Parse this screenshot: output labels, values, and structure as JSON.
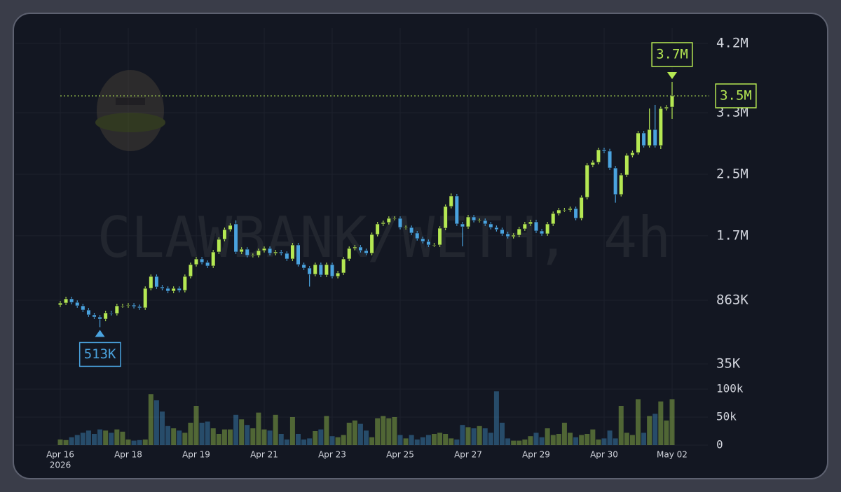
{
  "chart_data": {
    "type": "candlestick",
    "watermark": "CLAWBANK/WETH, 4h",
    "categories": [
      "Apr 16",
      null,
      null,
      null,
      null,
      null,
      null,
      null,
      null,
      null,
      null,
      null,
      "Apr 18",
      null,
      null,
      null,
      null,
      null,
      null,
      null,
      null,
      null,
      null,
      null,
      "Apr 19",
      null,
      null,
      null,
      null,
      null,
      null,
      null,
      null,
      null,
      null,
      null,
      "Apr 21",
      null,
      null,
      null,
      null,
      null,
      null,
      null,
      null,
      null,
      null,
      null,
      "Apr 23",
      null,
      null,
      null,
      null,
      null,
      null,
      null,
      null,
      null,
      null,
      null,
      "Apr 25",
      null,
      null,
      null,
      null,
      null,
      null,
      null,
      null,
      null,
      null,
      null,
      "Apr 27",
      null,
      null,
      null,
      null,
      null,
      null,
      null,
      null,
      null,
      null,
      null,
      "Apr 29",
      null,
      null,
      null,
      null,
      null,
      null,
      null,
      null,
      null,
      null,
      null,
      "Apr 30",
      null,
      null,
      null,
      null,
      null,
      null,
      null,
      null,
      null,
      null,
      null,
      "May 02"
    ],
    "year_label": "2026",
    "open": [
      800000,
      826000,
      881000,
      835000,
      790000,
      735000,
      672000,
      644000,
      617000,
      699000,
      690000,
      790000,
      790000,
      799000,
      781000,
      763000,
      1017000,
      1172000,
      1035000,
      1017000,
      981000,
      1017000,
      990000,
      1172000,
      1326000,
      1399000,
      1354000,
      1308000,
      1490000,
      1654000,
      1781000,
      1854000,
      1490000,
      1526000,
      1445000,
      1445000,
      1508000,
      1536000,
      1472000,
      1490000,
      1472000,
      1399000,
      1581000,
      1326000,
      1281000,
      1199000,
      1326000,
      1190000,
      1326000,
      1172000,
      1217000,
      1399000,
      1536000,
      1554000,
      1508000,
      1472000,
      1717000,
      1854000,
      1872000,
      1927000,
      1927000,
      1808000,
      1808000,
      1736000,
      1663000,
      1626000,
      1581000,
      1581000,
      1799000,
      2081000,
      2218000,
      1854000,
      1817000,
      1945000,
      1899000,
      1899000,
      1854000,
      1808000,
      1781000,
      1726000,
      1690000,
      1708000,
      1790000,
      1854000,
      1881000,
      1763000,
      1726000,
      1854000,
      1990000,
      2036000,
      2036000,
      2054000,
      1927000,
      2199000,
      2618000,
      2654000,
      2818000,
      2800000,
      2581000,
      2236000,
      2490000,
      2745000,
      2781000,
      3036000,
      2872000,
      3081000,
      2872000,
      3354000,
      3372000
    ],
    "high": [
      851000,
      906000,
      906000,
      860000,
      815000,
      760000,
      697000,
      669000,
      724000,
      724000,
      815000,
      815000,
      824000,
      824000,
      806000,
      1042000,
      1197000,
      1197000,
      1060000,
      1042000,
      1042000,
      1042000,
      1197000,
      1351000,
      1424000,
      1424000,
      1379000,
      1515000,
      1679000,
      1806000,
      1861000,
      1900000,
      1551000,
      1551000,
      1470000,
      1533000,
      1561000,
      1561000,
      1515000,
      1515000,
      1497000,
      1606000,
      1606000,
      1351000,
      1306000,
      1351000,
      1351000,
      1351000,
      1351000,
      1242000,
      1424000,
      1561000,
      1579000,
      1579000,
      1533000,
      1742000,
      1879000,
      1897000,
      1952000,
      1952000,
      1952000,
      1833000,
      1833000,
      1761000,
      1688000,
      1651000,
      1606000,
      1824000,
      2106000,
      2250000,
      2243000,
      1879000,
      1970000,
      1970000,
      1924000,
      1924000,
      1879000,
      1833000,
      1806000,
      1751000,
      1733000,
      1815000,
      1879000,
      1906000,
      1906000,
      1788000,
      1879000,
      2015000,
      2061000,
      2061000,
      2079000,
      2079000,
      2224000,
      2643000,
      2679000,
      2843000,
      2843000,
      2830000,
      2606000,
      2515000,
      2770000,
      2806000,
      3061000,
      3061000,
      3354000,
      3400000,
      3379000,
      3397000,
      3700000
    ],
    "low": [
      775000,
      801000,
      810000,
      765000,
      710000,
      647000,
      619000,
      513000,
      592000,
      665000,
      665000,
      765000,
      765000,
      756000,
      738000,
      738000,
      992000,
      1010000,
      992000,
      956000,
      956000,
      965000,
      965000,
      1147000,
      1301000,
      1329000,
      1283000,
      1283000,
      1465000,
      1629000,
      1756000,
      1465000,
      1465000,
      1420000,
      1420000,
      1420000,
      1483000,
      1447000,
      1447000,
      1447000,
      1374000,
      1374000,
      1301000,
      1256000,
      1040000,
      1174000,
      1165000,
      1165000,
      1147000,
      1147000,
      1192000,
      1374000,
      1511000,
      1483000,
      1447000,
      1447000,
      1692000,
      1829000,
      1847000,
      1902000,
      1783000,
      1783000,
      1711000,
      1638000,
      1601000,
      1556000,
      1556000,
      1556000,
      1774000,
      2056000,
      1829000,
      1563000,
      1792000,
      1874000,
      1874000,
      1829000,
      1783000,
      1756000,
      1701000,
      1665000,
      1665000,
      1683000,
      1765000,
      1829000,
      1738000,
      1701000,
      1701000,
      1829000,
      1965000,
      2011000,
      2011000,
      1902000,
      1902000,
      2174000,
      2593000,
      2629000,
      2775000,
      2556000,
      2130000,
      2211000,
      2465000,
      2720000,
      2756000,
      2847000,
      2847000,
      2847000,
      2827000,
      3329000,
      3218000
    ],
    "close": [
      826000,
      881000,
      835000,
      790000,
      735000,
      672000,
      644000,
      617000,
      699000,
      690000,
      790000,
      790000,
      799000,
      781000,
      763000,
      1017000,
      1172000,
      1035000,
      1017000,
      981000,
      1017000,
      990000,
      1172000,
      1326000,
      1399000,
      1354000,
      1308000,
      1490000,
      1654000,
      1781000,
      1836000,
      1490000,
      1526000,
      1445000,
      1445000,
      1508000,
      1536000,
      1472000,
      1490000,
      1472000,
      1399000,
      1581000,
      1326000,
      1281000,
      1199000,
      1326000,
      1190000,
      1326000,
      1172000,
      1217000,
      1399000,
      1536000,
      1554000,
      1508000,
      1472000,
      1717000,
      1854000,
      1872000,
      1927000,
      1927000,
      1808000,
      1808000,
      1736000,
      1663000,
      1626000,
      1581000,
      1581000,
      1799000,
      2081000,
      2218000,
      1854000,
      1817000,
      1945000,
      1899000,
      1899000,
      1854000,
      1808000,
      1781000,
      1726000,
      1690000,
      1708000,
      1790000,
      1854000,
      1881000,
      1763000,
      1726000,
      1854000,
      1990000,
      2036000,
      2036000,
      2054000,
      1927000,
      2199000,
      2618000,
      2654000,
      2818000,
      2800000,
      2581000,
      2236000,
      2490000,
      2745000,
      2781000,
      3036000,
      2872000,
      3081000,
      2872000,
      3354000,
      3372000,
      3518000
    ],
    "volume": [
      10000,
      9000,
      14000,
      18000,
      22000,
      26000,
      20000,
      28000,
      26000,
      22000,
      28000,
      24000,
      10000,
      8000,
      9000,
      10000,
      91000,
      80000,
      60000,
      34000,
      30000,
      26000,
      22000,
      40000,
      70000,
      40000,
      42000,
      30000,
      20000,
      28000,
      28000,
      54000,
      46000,
      36000,
      30000,
      58000,
      28000,
      26000,
      54000,
      20000,
      10000,
      50000,
      20000,
      10000,
      12000,
      25000,
      28000,
      52000,
      16000,
      14000,
      18000,
      40000,
      44000,
      38000,
      26000,
      14000,
      48000,
      52000,
      48000,
      50000,
      18000,
      12000,
      18000,
      10000,
      14000,
      18000,
      20000,
      22000,
      20000,
      12000,
      10000,
      36000,
      32000,
      30000,
      34000,
      30000,
      22000,
      96000,
      40000,
      12000,
      8000,
      8000,
      10000,
      16000,
      22000,
      14000,
      30000,
      18000,
      20000,
      40000,
      22000,
      14000,
      18000,
      20000,
      28000,
      10000,
      12000,
      26000,
      12000,
      70000,
      22000,
      18000,
      82000,
      22000,
      52000,
      56000,
      78000,
      44000,
      82000
    ],
    "up_color": "#b5e853",
    "down_color": "#4aa3df",
    "ylim": [
      35000,
      4200000
    ],
    "yticks": [
      {
        "value": 35000,
        "label": "35K"
      },
      {
        "value": 863000,
        "label": "863K"
      },
      {
        "value": 1700000,
        "label": "1.7M"
      },
      {
        "value": 2500000,
        "label": "2.5M"
      },
      {
        "value": 3300000,
        "label": "3.3M"
      },
      {
        "value": 4200000,
        "label": "4.2M"
      }
    ],
    "volume_ylim": [
      0,
      100000
    ],
    "volume_yticks": [
      0,
      {
        "value": 50000,
        "label": "50k"
      },
      {
        "value": 100000,
        "label": "100k"
      }
    ],
    "grid": true,
    "max_marker": {
      "value": 3700000,
      "label": "3.7M"
    },
    "min_marker": {
      "value": 513000,
      "label": "513K"
    },
    "last_price": {
      "value": 3518000,
      "label": "3.5M"
    }
  }
}
